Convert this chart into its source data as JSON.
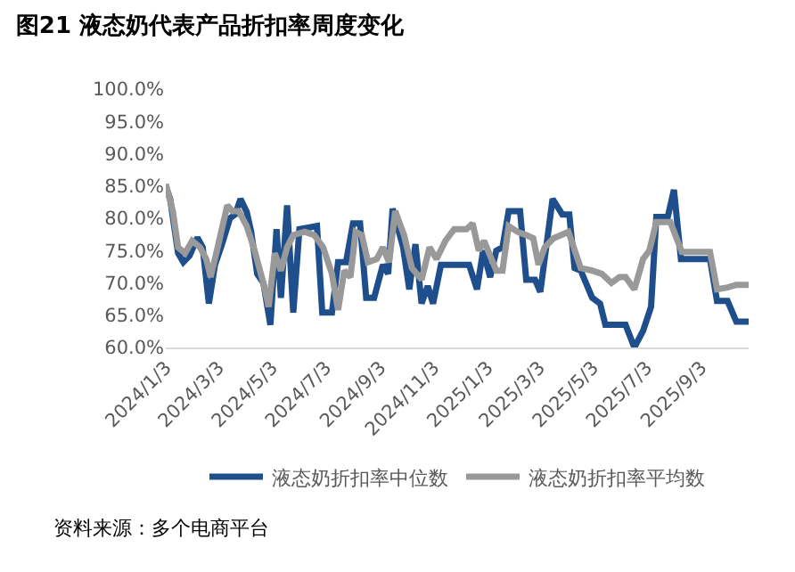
{
  "chart_data": {
    "type": "line",
    "title": "图21 液态奶代表产品折扣率周度变化",
    "xlim": [
      "2024-01-03",
      "2025-10-27"
    ],
    "xticks": [
      {
        "value": "2024-01-03",
        "label": "2024/1/3"
      },
      {
        "value": "2024-03-03",
        "label": "2024/3/3"
      },
      {
        "value": "2024-05-03",
        "label": "2024/5/3"
      },
      {
        "value": "2024-07-03",
        "label": "2024/7/3"
      },
      {
        "value": "2024-09-03",
        "label": "2024/9/3"
      },
      {
        "value": "2024-11-03",
        "label": "2024/11/3"
      },
      {
        "value": "2025-01-03",
        "label": "2025/1/3"
      },
      {
        "value": "2025-03-03",
        "label": "2025/3/3"
      },
      {
        "value": "2025-05-03",
        "label": "2025/5/3"
      },
      {
        "value": "2025-07-03",
        "label": "2025/7/3"
      },
      {
        "value": "2025-09-03",
        "label": "2025/9/3"
      }
    ],
    "ylim": [
      60,
      100
    ],
    "yticks": [
      {
        "value": 60,
        "label": "60.0%"
      },
      {
        "value": 65,
        "label": "65.0%"
      },
      {
        "value": 70,
        "label": "70.0%"
      },
      {
        "value": 75,
        "label": "75.0%"
      },
      {
        "value": 80,
        "label": "80.0%"
      },
      {
        "value": 85,
        "label": "85.0%"
      },
      {
        "value": 90,
        "label": "90.0%"
      },
      {
        "value": 95,
        "label": "95.0%"
      },
      {
        "value": 100,
        "label": "100.0%"
      }
    ],
    "grid": false,
    "legend": "bottom",
    "marker": "none",
    "line_style": "solid",
    "series": [
      {
        "name": "液态奶折扣率中位数",
        "color": "#1f4e8c",
        "x": [
          "2024-01-03",
          "2024-01-08",
          "2024-01-17",
          "2024-01-23",
          "2024-01-30",
          "2024-02-08",
          "2024-02-14",
          "2024-02-21",
          "2024-02-28",
          "2024-03-07",
          "2024-03-16",
          "2024-03-22",
          "2024-03-28",
          "2024-04-04",
          "2024-04-09",
          "2024-04-16",
          "2024-04-23",
          "2024-05-01",
          "2024-05-08",
          "2024-05-13",
          "2024-05-20",
          "2024-05-27",
          "2024-06-03",
          "2024-06-23",
          "2024-06-29",
          "2024-07-10",
          "2024-07-17",
          "2024-07-26",
          "2024-08-03",
          "2024-08-11",
          "2024-08-18",
          "2024-08-27",
          "2024-09-06",
          "2024-09-12",
          "2024-09-17",
          "2024-09-29",
          "2024-10-06",
          "2024-10-13",
          "2024-10-20",
          "2024-10-27",
          "2024-11-02",
          "2024-11-11",
          "2024-12-13",
          "2024-12-22",
          "2024-12-29",
          "2025-01-06",
          "2025-01-13",
          "2025-01-20",
          "2025-01-27",
          "2025-02-09",
          "2025-02-16",
          "2025-02-26",
          "2025-03-04",
          "2025-03-18",
          "2025-03-29",
          "2025-04-06",
          "2025-04-12",
          "2025-04-19",
          "2025-05-02",
          "2025-05-11",
          "2025-05-17",
          "2025-06-09",
          "2025-06-19",
          "2025-06-29",
          "2025-07-08",
          "2025-07-14",
          "2025-07-27",
          "2025-08-03",
          "2025-08-11",
          "2025-09-13",
          "2025-09-21",
          "2025-10-03",
          "2025-10-13",
          "2025-10-27"
        ],
        "values": [
          85,
          83,
          74.6,
          73.2,
          74.2,
          77,
          75.5,
          66.8,
          72.8,
          76,
          80,
          80.6,
          83,
          81,
          78,
          71.4,
          70,
          63.5,
          78.3,
          67.7,
          82,
          65.4,
          78.3,
          78.8,
          65.4,
          65.4,
          73.2,
          73.2,
          79.2,
          79.2,
          67.7,
          67.7,
          72.8,
          71.4,
          81.5,
          75.5,
          69,
          76,
          66.8,
          69.5,
          66.8,
          72.8,
          72.8,
          69,
          75,
          70.9,
          75,
          75.5,
          81.1,
          81.1,
          70.5,
          70.5,
          68.6,
          83,
          80.6,
          80.6,
          72.3,
          71.9,
          67.7,
          66.8,
          63.5,
          63.5,
          60,
          62.6,
          66.3,
          80.2,
          80.2,
          84.4,
          73.7,
          73.7,
          67.2,
          67.2,
          64,
          64
        ]
      },
      {
        "name": "液态奶折扣率平均数",
        "color": "#999999",
        "x": [
          "2024-01-03",
          "2024-01-11",
          "2024-01-17",
          "2024-01-25",
          "2024-02-02",
          "2024-02-11",
          "2024-02-18",
          "2024-02-23",
          "2024-03-02",
          "2024-03-13",
          "2024-03-19",
          "2024-03-26",
          "2024-04-04",
          "2024-04-12",
          "2024-04-23",
          "2024-04-29",
          "2024-05-06",
          "2024-05-13",
          "2024-05-20",
          "2024-05-27",
          "2024-06-09",
          "2024-06-20",
          "2024-06-30",
          "2024-07-10",
          "2024-07-17",
          "2024-07-24",
          "2024-07-31",
          "2024-08-06",
          "2024-08-13",
          "2024-08-20",
          "2024-08-30",
          "2024-09-06",
          "2024-09-13",
          "2024-09-20",
          "2024-09-30",
          "2024-10-09",
          "2024-10-20",
          "2024-10-29",
          "2024-11-06",
          "2024-11-16",
          "2024-11-26",
          "2024-12-10",
          "2024-12-17",
          "2024-12-24",
          "2024-12-30",
          "2025-01-13",
          "2025-01-20",
          "2025-01-27",
          "2025-02-06",
          "2025-02-16",
          "2025-02-24",
          "2025-03-02",
          "2025-03-09",
          "2025-03-19",
          "2025-04-05",
          "2025-04-19",
          "2025-05-02",
          "2025-05-13",
          "2025-05-24",
          "2025-06-02",
          "2025-06-09",
          "2025-06-19",
          "2025-06-29",
          "2025-07-06",
          "2025-07-14",
          "2025-07-30",
          "2025-08-12",
          "2025-09-13",
          "2025-09-21",
          "2025-10-03",
          "2025-10-13",
          "2025-10-27"
        ],
        "values": [
          85.3,
          81.1,
          75.5,
          74.6,
          76.5,
          75.5,
          73.7,
          70.9,
          75.5,
          82,
          81.1,
          81.1,
          78.8,
          75.5,
          70,
          66.3,
          74.6,
          71.9,
          75.5,
          77.4,
          77.9,
          77.4,
          75.5,
          71.4,
          65.8,
          71.9,
          70.9,
          77.9,
          77.4,
          73.2,
          73.7,
          75.5,
          73.2,
          81.1,
          77.4,
          72.3,
          70.5,
          75.5,
          73.7,
          76.5,
          78.3,
          78.3,
          79.2,
          75,
          76.5,
          71.9,
          71.9,
          78.8,
          77.9,
          77.4,
          76.9,
          72.8,
          75.5,
          76.9,
          77.9,
          72.3,
          71.9,
          71.4,
          70,
          70.9,
          70.9,
          69,
          73.7,
          75,
          79.4,
          79.4,
          74.8,
          74.8,
          69,
          69.3,
          69.7,
          69.7
        ]
      }
    ],
    "annotations": [
      "资料来源：多个电商平台"
    ]
  }
}
